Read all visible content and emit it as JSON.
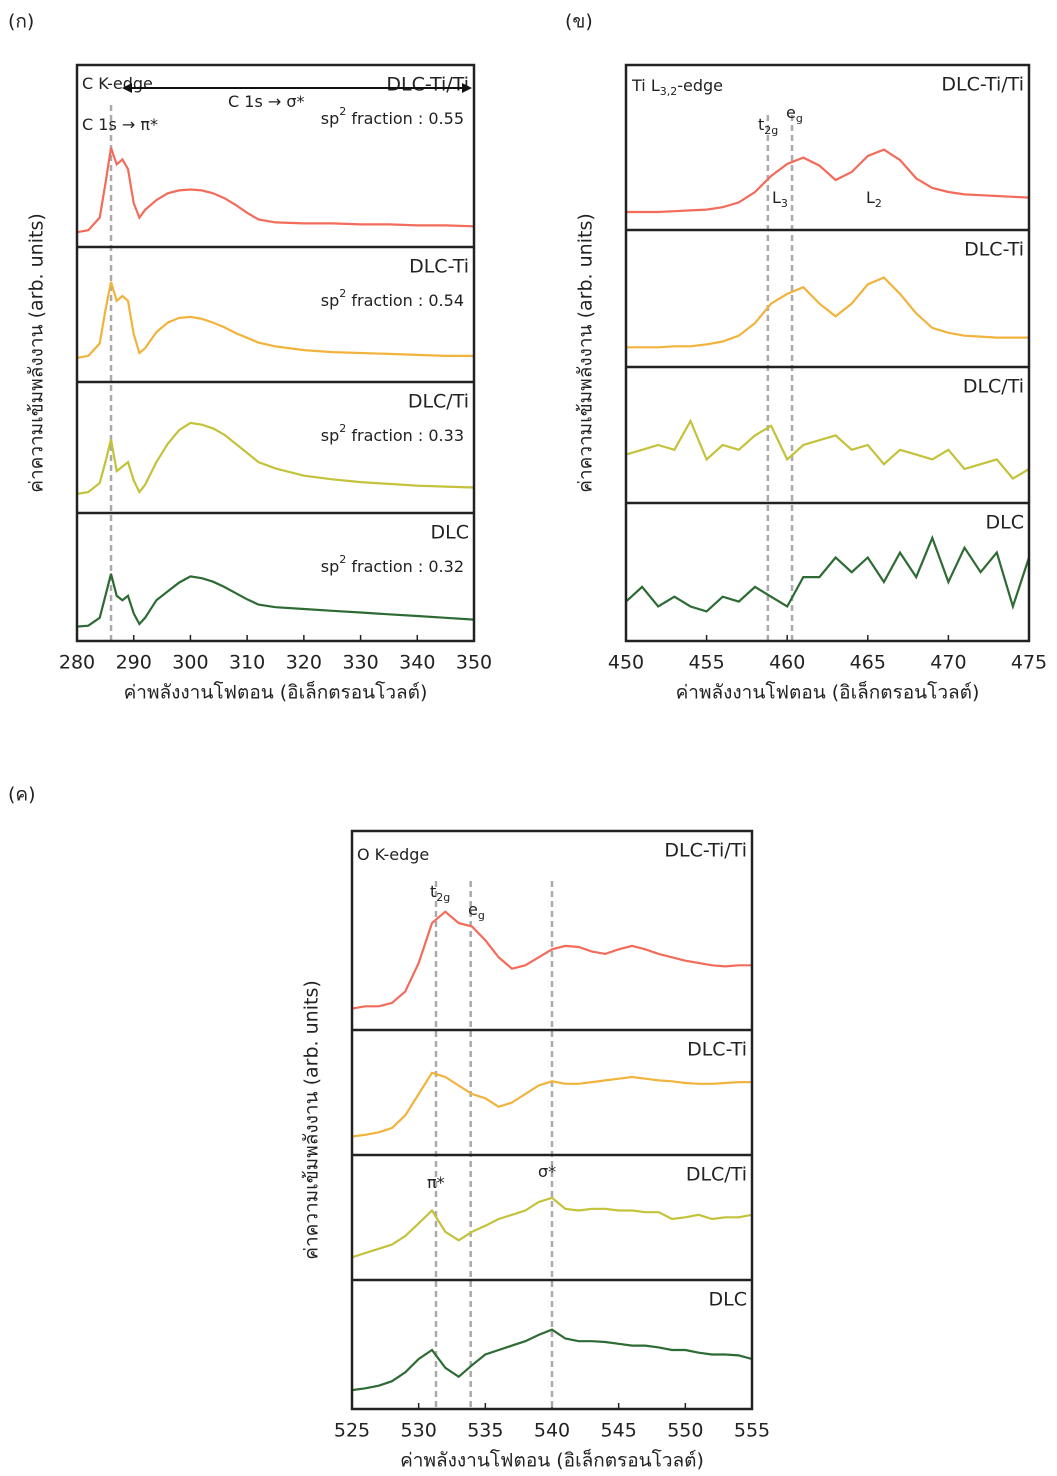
{
  "chart_data": [
    {
      "type": "line",
      "panel_label": "(ก)",
      "xlabel": "ค่าพลังงานโฟตอน (อิเล็กตรอนโวลต์)",
      "ylabel": "ค่าความเข้มพลังงาน (arb. units)",
      "xlim": [
        280,
        350
      ],
      "xticks": [
        280,
        290,
        300,
        310,
        320,
        330,
        340,
        350
      ],
      "ylim": [
        0,
        1
      ],
      "vlines": [
        286
      ],
      "annotations": [
        {
          "text": "C K-edge"
        },
        {
          "text": "C 1s → σ*"
        },
        {
          "text": "C 1s → π*"
        }
      ],
      "x": [
        280,
        282,
        284,
        285,
        286,
        287,
        288,
        289,
        290,
        291,
        292,
        294,
        296,
        298,
        300,
        302,
        304,
        306,
        308,
        310,
        312,
        315,
        320,
        325,
        330,
        335,
        340,
        345,
        350
      ],
      "series": [
        {
          "name": "DLC-Ti/Ti",
          "color": "#f26b5b",
          "note": {
            "text": "sp",
            "sup": "2",
            "after": " fraction : 0.55"
          },
          "values": [
            0.05,
            0.07,
            0.2,
            0.55,
            0.92,
            0.75,
            0.8,
            0.7,
            0.35,
            0.2,
            0.28,
            0.38,
            0.45,
            0.48,
            0.49,
            0.48,
            0.45,
            0.4,
            0.33,
            0.25,
            0.18,
            0.15,
            0.14,
            0.14,
            0.13,
            0.13,
            0.12,
            0.12,
            0.11
          ]
        },
        {
          "name": "DLC-Ti",
          "color": "#f2b33d",
          "note": {
            "text": "sp",
            "sup": "2",
            "after": " fraction : 0.54"
          },
          "values": [
            0.15,
            0.17,
            0.3,
            0.65,
            0.95,
            0.75,
            0.8,
            0.75,
            0.4,
            0.2,
            0.25,
            0.42,
            0.52,
            0.57,
            0.58,
            0.56,
            0.52,
            0.47,
            0.41,
            0.36,
            0.31,
            0.27,
            0.23,
            0.21,
            0.2,
            0.19,
            0.18,
            0.17,
            0.17
          ]
        },
        {
          "name": "DLC/Ti",
          "color": "#c3c23a",
          "note": {
            "text": "sp",
            "sup": "2",
            "after": " fraction : 0.33"
          },
          "values": [
            0.1,
            0.12,
            0.22,
            0.45,
            0.7,
            0.35,
            0.4,
            0.45,
            0.25,
            0.12,
            0.2,
            0.45,
            0.65,
            0.8,
            0.88,
            0.86,
            0.82,
            0.75,
            0.65,
            0.55,
            0.45,
            0.38,
            0.3,
            0.26,
            0.23,
            0.21,
            0.19,
            0.18,
            0.17
          ]
        },
        {
          "name": "DLC",
          "color": "#2e6b34",
          "note": {
            "text": "sp",
            "sup": "2",
            "after": " fraction : 0.32"
          },
          "values": [
            0.05,
            0.06,
            0.15,
            0.4,
            0.65,
            0.4,
            0.35,
            0.4,
            0.2,
            0.08,
            0.15,
            0.35,
            0.45,
            0.55,
            0.62,
            0.6,
            0.56,
            0.5,
            0.43,
            0.36,
            0.3,
            0.27,
            0.25,
            0.23,
            0.21,
            0.19,
            0.17,
            0.15,
            0.13
          ]
        }
      ]
    },
    {
      "type": "line",
      "panel_label": "(ข)",
      "xlabel": "ค่าพลังงานโฟตอน (อิเล็กตรอนโวลต์)",
      "ylabel": "ค่าความเข้มพลังงาน (arb. units)",
      "xlim": [
        450,
        475
      ],
      "xticks": [
        450,
        455,
        460,
        465,
        470,
        475
      ],
      "ylim": [
        0,
        1
      ],
      "vlines": [
        458.8,
        460.3
      ],
      "annotations": [
        {
          "text": "Ti L",
          "sub": "3,2",
          "after": "-edge"
        },
        {
          "text": "t",
          "sub": "2g"
        },
        {
          "text": "e",
          "sub": "g"
        },
        {
          "text": "L",
          "sub": "3"
        },
        {
          "text": "L",
          "sub": "2"
        }
      ],
      "x": [
        450,
        451,
        452,
        453,
        454,
        455,
        456,
        457,
        458,
        459,
        460,
        461,
        462,
        463,
        464,
        465,
        466,
        467,
        468,
        469,
        470,
        471,
        472,
        473,
        474,
        475
      ],
      "series": [
        {
          "name": "DLC-Ti/Ti",
          "color": "#f26b5b",
          "values": [
            0.1,
            0.1,
            0.1,
            0.11,
            0.12,
            0.13,
            0.16,
            0.22,
            0.35,
            0.55,
            0.7,
            0.78,
            0.68,
            0.5,
            0.6,
            0.8,
            0.88,
            0.75,
            0.52,
            0.4,
            0.35,
            0.32,
            0.31,
            0.3,
            0.29,
            0.28
          ]
        },
        {
          "name": "DLC-Ti",
          "color": "#f2b33d",
          "values": [
            0.1,
            0.1,
            0.1,
            0.11,
            0.11,
            0.13,
            0.16,
            0.22,
            0.35,
            0.55,
            0.65,
            0.72,
            0.55,
            0.42,
            0.55,
            0.75,
            0.82,
            0.65,
            0.45,
            0.3,
            0.25,
            0.22,
            0.21,
            0.2,
            0.2,
            0.2
          ]
        },
        {
          "name": "DLC/Ti",
          "color": "#c3c23a",
          "values": [
            0.4,
            0.45,
            0.5,
            0.45,
            0.75,
            0.35,
            0.5,
            0.45,
            0.6,
            0.7,
            0.35,
            0.5,
            0.55,
            0.6,
            0.45,
            0.5,
            0.3,
            0.45,
            0.4,
            0.35,
            0.45,
            0.25,
            0.3,
            0.35,
            0.15,
            0.25
          ]
        },
        {
          "name": "DLC",
          "color": "#2e6b34",
          "values": [
            0.3,
            0.45,
            0.25,
            0.35,
            0.25,
            0.2,
            0.35,
            0.3,
            0.45,
            0.35,
            0.25,
            0.55,
            0.55,
            0.75,
            0.6,
            0.75,
            0.5,
            0.8,
            0.55,
            0.95,
            0.5,
            0.85,
            0.6,
            0.8,
            0.25,
            0.75
          ]
        }
      ]
    },
    {
      "type": "line",
      "panel_label": "(ค)",
      "xlabel": "ค่าพลังงานโฟตอน (อิเล็กตรอนโวลต์)",
      "ylabel": "ค่าความเข้มพลังงาน (arb. units)",
      "xlim": [
        525,
        555
      ],
      "xticks": [
        525,
        530,
        535,
        540,
        545,
        550,
        555
      ],
      "ylim": [
        0,
        1
      ],
      "vlines": [
        531.3,
        533.9,
        540
      ],
      "annotations": [
        {
          "text": "O K-edge"
        },
        {
          "text": "t",
          "sub": "2g"
        },
        {
          "text": "e",
          "sub": "g"
        },
        {
          "text": "π*"
        },
        {
          "text": "σ*"
        }
      ],
      "x": [
        525,
        526,
        527,
        528,
        529,
        530,
        531,
        532,
        533,
        534,
        535,
        536,
        537,
        538,
        539,
        540,
        541,
        542,
        543,
        544,
        545,
        546,
        547,
        548,
        549,
        550,
        551,
        552,
        553,
        554,
        555
      ],
      "series": [
        {
          "name": "DLC-Ti/Ti",
          "color": "#f26b5b",
          "values": [
            0.1,
            0.12,
            0.12,
            0.15,
            0.25,
            0.5,
            0.85,
            0.95,
            0.85,
            0.82,
            0.7,
            0.55,
            0.45,
            0.48,
            0.55,
            0.62,
            0.65,
            0.64,
            0.6,
            0.58,
            0.62,
            0.65,
            0.62,
            0.58,
            0.55,
            0.52,
            0.5,
            0.48,
            0.47,
            0.48,
            0.48
          ]
        },
        {
          "name": "DLC-Ti",
          "color": "#f2b33d",
          "values": [
            0.1,
            0.12,
            0.15,
            0.2,
            0.35,
            0.6,
            0.85,
            0.8,
            0.7,
            0.6,
            0.55,
            0.45,
            0.5,
            0.6,
            0.7,
            0.75,
            0.72,
            0.72,
            0.74,
            0.76,
            0.78,
            0.8,
            0.78,
            0.76,
            0.75,
            0.73,
            0.72,
            0.72,
            0.73,
            0.74,
            0.74
          ]
        },
        {
          "name": "DLC/Ti",
          "color": "#c3c23a",
          "values": [
            0.15,
            0.2,
            0.25,
            0.3,
            0.4,
            0.55,
            0.7,
            0.45,
            0.35,
            0.45,
            0.52,
            0.6,
            0.65,
            0.7,
            0.8,
            0.85,
            0.72,
            0.7,
            0.72,
            0.72,
            0.7,
            0.7,
            0.68,
            0.68,
            0.6,
            0.62,
            0.65,
            0.6,
            0.62,
            0.62,
            0.65
          ]
        },
        {
          "name": "DLC",
          "color": "#2e6b34",
          "values": [
            0.1,
            0.12,
            0.15,
            0.2,
            0.3,
            0.45,
            0.55,
            0.35,
            0.25,
            0.38,
            0.5,
            0.55,
            0.6,
            0.65,
            0.72,
            0.78,
            0.68,
            0.65,
            0.65,
            0.64,
            0.62,
            0.6,
            0.6,
            0.58,
            0.55,
            0.55,
            0.52,
            0.5,
            0.5,
            0.49,
            0.45
          ]
        }
      ]
    }
  ]
}
